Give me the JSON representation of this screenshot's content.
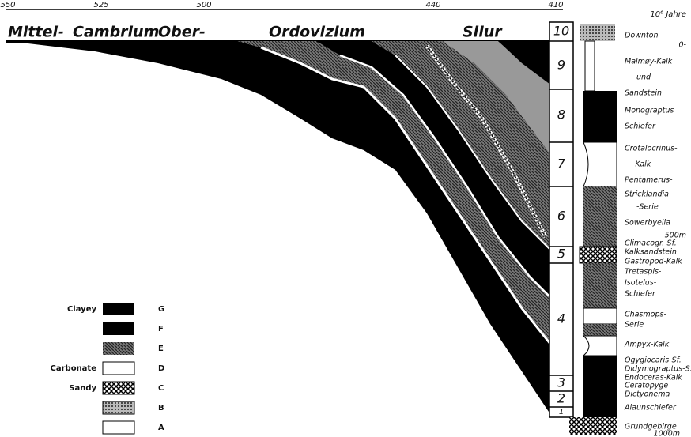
{
  "axis": {
    "ticks": [
      "550",
      "525",
      "500",
      "440",
      "410"
    ],
    "unit": "10⁶ Jahre"
  },
  "periods": [
    "Mittel-",
    "Cambrium",
    "Ober-",
    "Ordovizium",
    "Silur"
  ],
  "stages": [
    "10",
    "9",
    "8",
    "7",
    "6",
    "5",
    "4",
    "3",
    "2",
    "1"
  ],
  "column_labels": [
    "Downton",
    "0-",
    "Malmøy-Kalk",
    "und",
    "Sandstein",
    "Monograptus",
    "Schiefer",
    "Crotalocrinus-",
    "-Kalk",
    "Pentamerus-",
    "Stricklandia-",
    "-Serie",
    "Sowerbyella",
    "500m",
    "Climacogr.-Sf.",
    "Kalksandstein",
    "Gastropod-Kalk",
    "Tretaspis-",
    "Isotelus-",
    "Schiefer",
    "Chasmops-",
    "Serie",
    "Ampyx-Kalk",
    "Ogygiocaris-Sf.",
    "Didymograptus-S.",
    "Endoceras-Kalk",
    "Ceratopyge",
    "Dictyonema",
    "Alaunschiefer",
    "Grundgebirge",
    "1000m"
  ],
  "legend": {
    "groups": [
      "Clayey",
      "Carbonate",
      "Sandy"
    ],
    "keys": [
      "G",
      "F",
      "E",
      "D",
      "C",
      "B",
      "A"
    ]
  }
}
